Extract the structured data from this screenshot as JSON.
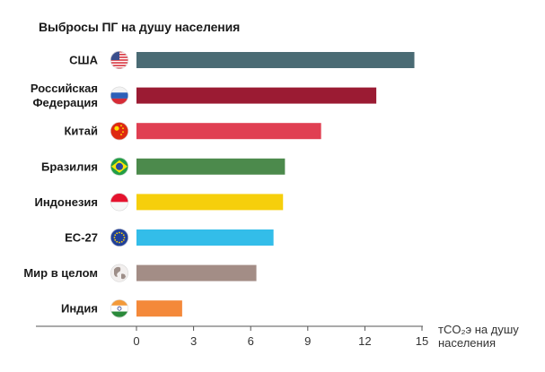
{
  "chart_data": {
    "type": "bar",
    "orientation": "horizontal",
    "title": "Выбросы ПГ на душу населения",
    "xlabel": "тCO₂э на душу населения",
    "xlim": [
      0,
      15
    ],
    "xticks": [
      0,
      3,
      6,
      9,
      12,
      15
    ],
    "grid": false,
    "categories": [
      {
        "label": [
          "США"
        ],
        "icon": "usa-flag-icon"
      },
      {
        "label": [
          "Российская",
          "Федерация"
        ],
        "icon": "russia-flag-icon"
      },
      {
        "label": [
          "Китай"
        ],
        "icon": "china-flag-icon"
      },
      {
        "label": [
          "Бразилия"
        ],
        "icon": "brazil-flag-icon"
      },
      {
        "label": [
          "Индонезия"
        ],
        "icon": "indonesia-flag-icon"
      },
      {
        "label": [
          "ЕС-27"
        ],
        "icon": "eu-flag-icon"
      },
      {
        "label": [
          "Мир в целом"
        ],
        "icon": "globe-icon"
      },
      {
        "label": [
          "Индия"
        ],
        "icon": "india-flag-icon"
      }
    ],
    "values": [
      14.6,
      12.6,
      9.7,
      7.8,
      7.7,
      7.2,
      6.3,
      2.4
    ],
    "colors": [
      "#4a6b74",
      "#9b1b33",
      "#e03f52",
      "#4c8a4c",
      "#f6cf0c",
      "#33bde9",
      "#a38d86",
      "#f4893a"
    ]
  }
}
